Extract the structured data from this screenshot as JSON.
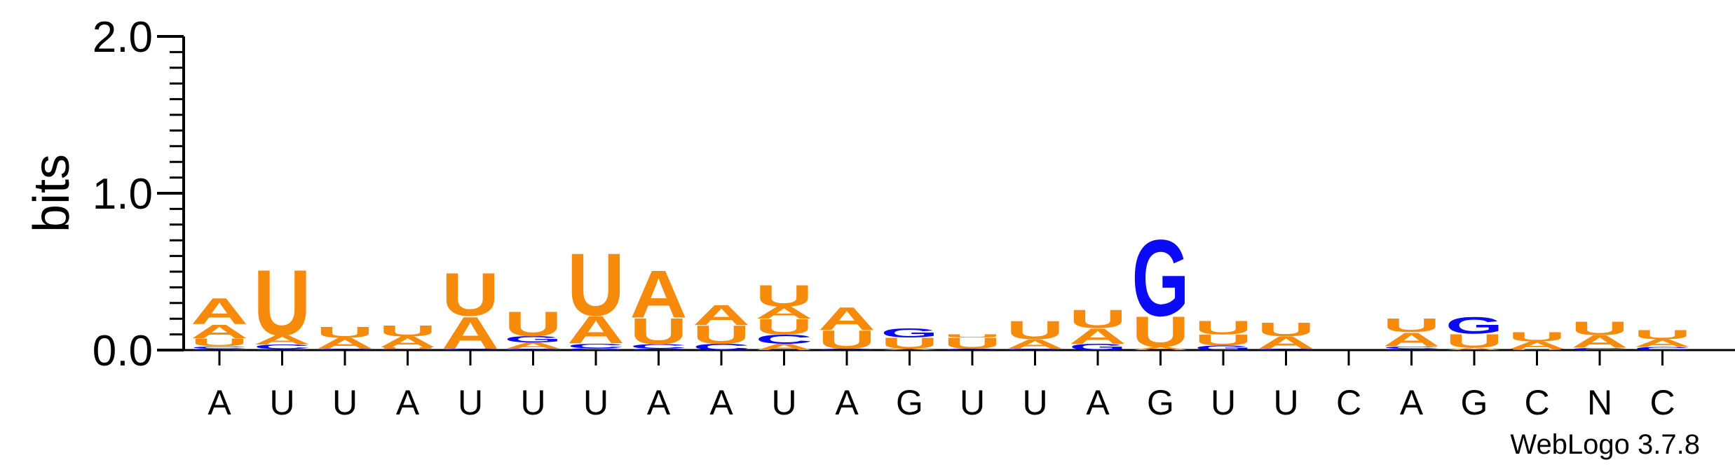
{
  "chart_data": {
    "type": "sequence-logo",
    "ylabel": "bits",
    "ylim": [
      0,
      2.0
    ],
    "yticks": [
      {
        "value": 0.0,
        "label": "0.0"
      },
      {
        "value": 1.0,
        "label": "1.0"
      },
      {
        "value": 2.0,
        "label": "2.0"
      }
    ],
    "colors": {
      "A": "#f58a0b",
      "U": "#f58a0b",
      "G": "#0a0af5",
      "C": "#0a0af5"
    },
    "credit": "WebLogo 3.7.8",
    "positions": [
      {
        "label": "A",
        "stack": [
          [
            "G",
            0.01
          ],
          [
            "C",
            0.015
          ],
          [
            "U",
            0.05
          ],
          [
            "A",
            0.09
          ],
          [
            "A",
            0.17
          ]
        ]
      },
      {
        "label": "U",
        "stack": [
          [
            "G",
            0.006
          ],
          [
            "C",
            0.03
          ],
          [
            "A",
            0.06
          ],
          [
            "U",
            0.43
          ]
        ]
      },
      {
        "label": "U",
        "stack": [
          [
            "C",
            0.008
          ],
          [
            "A",
            0.07
          ],
          [
            "U",
            0.07
          ]
        ]
      },
      {
        "label": "A",
        "stack": [
          [
            "C",
            0.006
          ],
          [
            "U",
            0.012
          ],
          [
            "A",
            0.07
          ],
          [
            "U",
            0.07
          ]
        ]
      },
      {
        "label": "U",
        "stack": [
          [
            "C",
            0.01
          ],
          [
            "A",
            0.21
          ],
          [
            "U",
            0.28
          ]
        ]
      },
      {
        "label": "U",
        "stack": [
          [
            "G",
            0.01
          ],
          [
            "A",
            0.04
          ],
          [
            "G",
            0.04
          ],
          [
            "U",
            0.16
          ]
        ]
      },
      {
        "label": "U",
        "stack": [
          [
            "G",
            0.012
          ],
          [
            "C",
            0.03
          ],
          [
            "A",
            0.18
          ],
          [
            "U",
            0.41
          ]
        ]
      },
      {
        "label": "A",
        "stack": [
          [
            "C",
            0.008
          ],
          [
            "C",
            0.03
          ],
          [
            "U",
            0.17
          ],
          [
            "A",
            0.31
          ]
        ]
      },
      {
        "label": "A",
        "stack": [
          [
            "C",
            0.04
          ],
          [
            "U",
            0.12
          ],
          [
            "A",
            0.13
          ]
        ]
      },
      {
        "label": "U",
        "stack": [
          [
            "A",
            0.04
          ],
          [
            "C",
            0.06
          ],
          [
            "U",
            0.1
          ],
          [
            "A",
            0.08
          ],
          [
            "U",
            0.14
          ]
        ]
      },
      {
        "label": "A",
        "stack": [
          [
            "G",
            0.01
          ],
          [
            "U",
            0.12
          ],
          [
            "A",
            0.15
          ]
        ]
      },
      {
        "label": "G",
        "stack": [
          [
            "A",
            0.01
          ],
          [
            "U",
            0.07
          ],
          [
            "G",
            0.06
          ]
        ]
      },
      {
        "label": "U",
        "stack": [
          [
            "G",
            0.01
          ],
          [
            "U",
            0.07
          ],
          [
            "U",
            0.02
          ]
        ]
      },
      {
        "label": "U",
        "stack": [
          [
            "G",
            0.01
          ],
          [
            "A",
            0.06
          ],
          [
            "U",
            0.12
          ]
        ]
      },
      {
        "label": "A",
        "stack": [
          [
            "G",
            0.04
          ],
          [
            "A",
            0.1
          ],
          [
            "U",
            0.12
          ]
        ]
      },
      {
        "label": "G",
        "stack": [
          [
            "A",
            0.02
          ],
          [
            "U",
            0.2
          ],
          [
            "G",
            0.5
          ]
        ]
      },
      {
        "label": "U",
        "stack": [
          [
            "G",
            0.03
          ],
          [
            "U",
            0.07
          ],
          [
            "U",
            0.09
          ]
        ]
      },
      {
        "label": "U",
        "stack": [
          [
            "C",
            0.01
          ],
          [
            "A",
            0.08
          ],
          [
            "U",
            0.09
          ]
        ]
      },
      {
        "label": "C",
        "stack": []
      },
      {
        "label": "A",
        "stack": [
          [
            "C",
            0.01
          ],
          [
            "C",
            0.015
          ],
          [
            "A",
            0.09
          ],
          [
            "U",
            0.09
          ]
        ]
      },
      {
        "label": "G",
        "stack": [
          [
            "A",
            0.015
          ],
          [
            "U",
            0.09
          ],
          [
            "G",
            0.11
          ]
        ]
      },
      {
        "label": "C",
        "stack": [
          [
            "U",
            0.006
          ],
          [
            "A",
            0.05
          ],
          [
            "U",
            0.06
          ]
        ]
      },
      {
        "label": "N",
        "stack": [
          [
            "C",
            0.015
          ],
          [
            "A",
            0.08
          ],
          [
            "U",
            0.09
          ]
        ]
      },
      {
        "label": "C",
        "stack": [
          [
            "C",
            0.02
          ],
          [
            "A",
            0.05
          ],
          [
            "U",
            0.06
          ]
        ]
      }
    ]
  }
}
